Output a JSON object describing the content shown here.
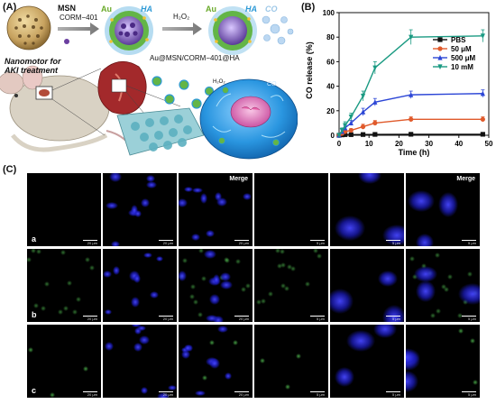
{
  "panel_a": {
    "letter": "(A)",
    "msn": "MSN",
    "corm": "CORM−401",
    "au_1": "Au",
    "ha_1": "HA",
    "h2o2": "H₂O₂",
    "au_2": "Au",
    "ha_2": "HA",
    "co_1": "CO",
    "nanomotor": "Nanomotor for",
    "aki": "AKI treatment",
    "compound": "Au@MSN/CORM−401@HA",
    "h2o2_small": "H₂O₂",
    "co_small": "CO",
    "colors": {
      "sphere": "#c8a868",
      "purple": "#6b3fa0",
      "green": "#63b547",
      "ha_blue": "#2e9ad6",
      "cell_blue": "#1f8fd8"
    }
  },
  "panel_b": {
    "letter": "(B)",
    "chart_data": {
      "type": "line",
      "xlabel": "Time (h)",
      "ylabel": "CO release (%)",
      "xlim": [
        0,
        50
      ],
      "ylim": [
        0,
        100
      ],
      "xticks": [
        0,
        10,
        20,
        30,
        40,
        50
      ],
      "yticks": [
        0,
        20,
        40,
        60,
        80,
        100
      ],
      "x": [
        0,
        1,
        2,
        4,
        8,
        12,
        24,
        48
      ],
      "legend_position": "top-right",
      "series": [
        {
          "name": "PBS",
          "color": "#111111",
          "marker": "square",
          "values": [
            0,
            0.3,
            0.5,
            0.5,
            0.6,
            0.7,
            0.8,
            0.8
          ]
        },
        {
          "name": "50 μM",
          "color": "#e05a2b",
          "marker": "circle",
          "values": [
            0,
            1.5,
            3,
            4,
            7,
            10,
            13,
            13
          ]
        },
        {
          "name": "500 μM",
          "color": "#2c46d6",
          "marker": "triangle",
          "values": [
            0,
            3,
            6,
            10,
            19,
            27,
            33,
            34
          ]
        },
        {
          "name": "10 mM",
          "color": "#1a9a82",
          "marker": "triangle-down",
          "values": [
            0,
            4,
            8,
            15,
            32,
            55,
            80,
            81
          ]
        }
      ],
      "errors": [
        [
          0,
          0.2,
          0.2,
          0.2,
          0.2,
          0.2,
          0.2,
          0.2
        ],
        [
          0,
          1,
          1.5,
          1.5,
          2,
          2,
          2,
          2
        ],
        [
          0,
          1.5,
          2,
          2,
          3,
          3,
          3,
          3
        ],
        [
          0,
          2,
          3,
          3,
          4,
          5,
          6,
          5
        ]
      ]
    }
  },
  "panel_c": {
    "letter": "(C)",
    "merge_label": "Merge",
    "rows": [
      "a",
      "b",
      "c"
    ],
    "scale_left": "20 μm",
    "scale_right": "5 μm",
    "colors": {
      "nucleus": "#2a2ae0",
      "green_signal": "#4fc24f",
      "background": "#000000"
    }
  }
}
